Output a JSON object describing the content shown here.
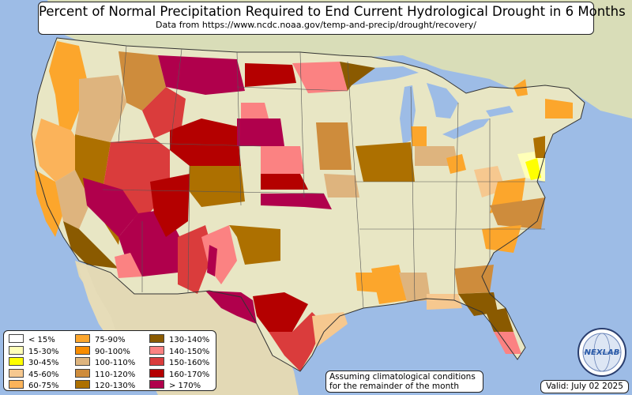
{
  "title": "Percent of Normal Precipitation Required to End Current Hydrological Drought in 6 Months",
  "subtitle": "Data from https://www.ncdc.noaa.gov/temp-and-precip/drought/recovery/",
  "note_line1": "Assuming climatological conditions",
  "note_line2": "for the remainder of the month",
  "valid": "Valid: July 02 2025",
  "logo_text": "NEXLAB",
  "legend": [
    {
      "label": "< 15%",
      "color": "#ffffff"
    },
    {
      "label": "15-30%",
      "color": "#ffffb8"
    },
    {
      "label": "30-45%",
      "color": "#ffff00"
    },
    {
      "label": "45-60%",
      "color": "#f6c88f"
    },
    {
      "label": "60-75%",
      "color": "#fbb35a"
    },
    {
      "label": "75-90%",
      "color": "#fca62c"
    },
    {
      "label": "90-100%",
      "color": "#f88c00"
    },
    {
      "label": "100-110%",
      "color": "#deb47e"
    },
    {
      "label": "110-120%",
      "color": "#ce8c3c"
    },
    {
      "label": "120-130%",
      "color": "#ad7000"
    },
    {
      "label": "130-140%",
      "color": "#8a5a00"
    },
    {
      "label": "140-150%",
      "color": "#fb8282"
    },
    {
      "label": "150-160%",
      "color": "#da3c3c"
    },
    {
      "label": "160-170%",
      "color": "#b40000"
    },
    {
      "label": "> 170%",
      "color": "#b0004c"
    }
  ]
}
